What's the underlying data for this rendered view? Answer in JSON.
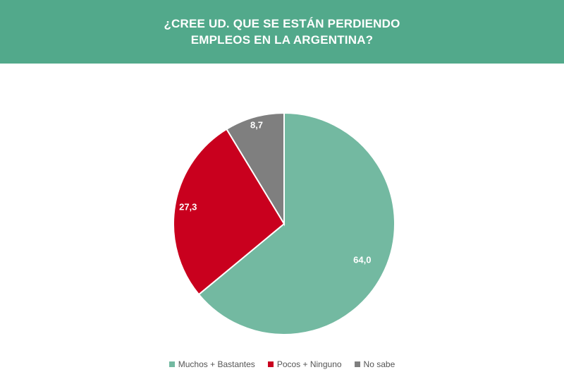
{
  "header": {
    "title_line1": "¿CREE UD. QUE SE ESTÁN PERDIENDO",
    "title_line2": "EMPLEOS EN LA ARGENTINA?",
    "background": "#52a98b"
  },
  "chart_data": {
    "type": "pie",
    "title": "¿CREE UD. QUE SE ESTÁN PERDIENDO EMPLEOS EN LA ARGENTINA?",
    "legend_position": "bottom-center",
    "start_angle": "12 o'clock",
    "direction": "clockwise",
    "slices": [
      {
        "label": "Muchos + Bastantes",
        "value": 64.0,
        "display": "64,0",
        "color": "#73b9a1"
      },
      {
        "label": "Pocos + Ninguno",
        "value": 27.3,
        "display": "27,3",
        "color": "#c9001e"
      },
      {
        "label": "No sabe",
        "value": 8.7,
        "display": "8,7",
        "color": "#7f7f7f"
      }
    ]
  }
}
